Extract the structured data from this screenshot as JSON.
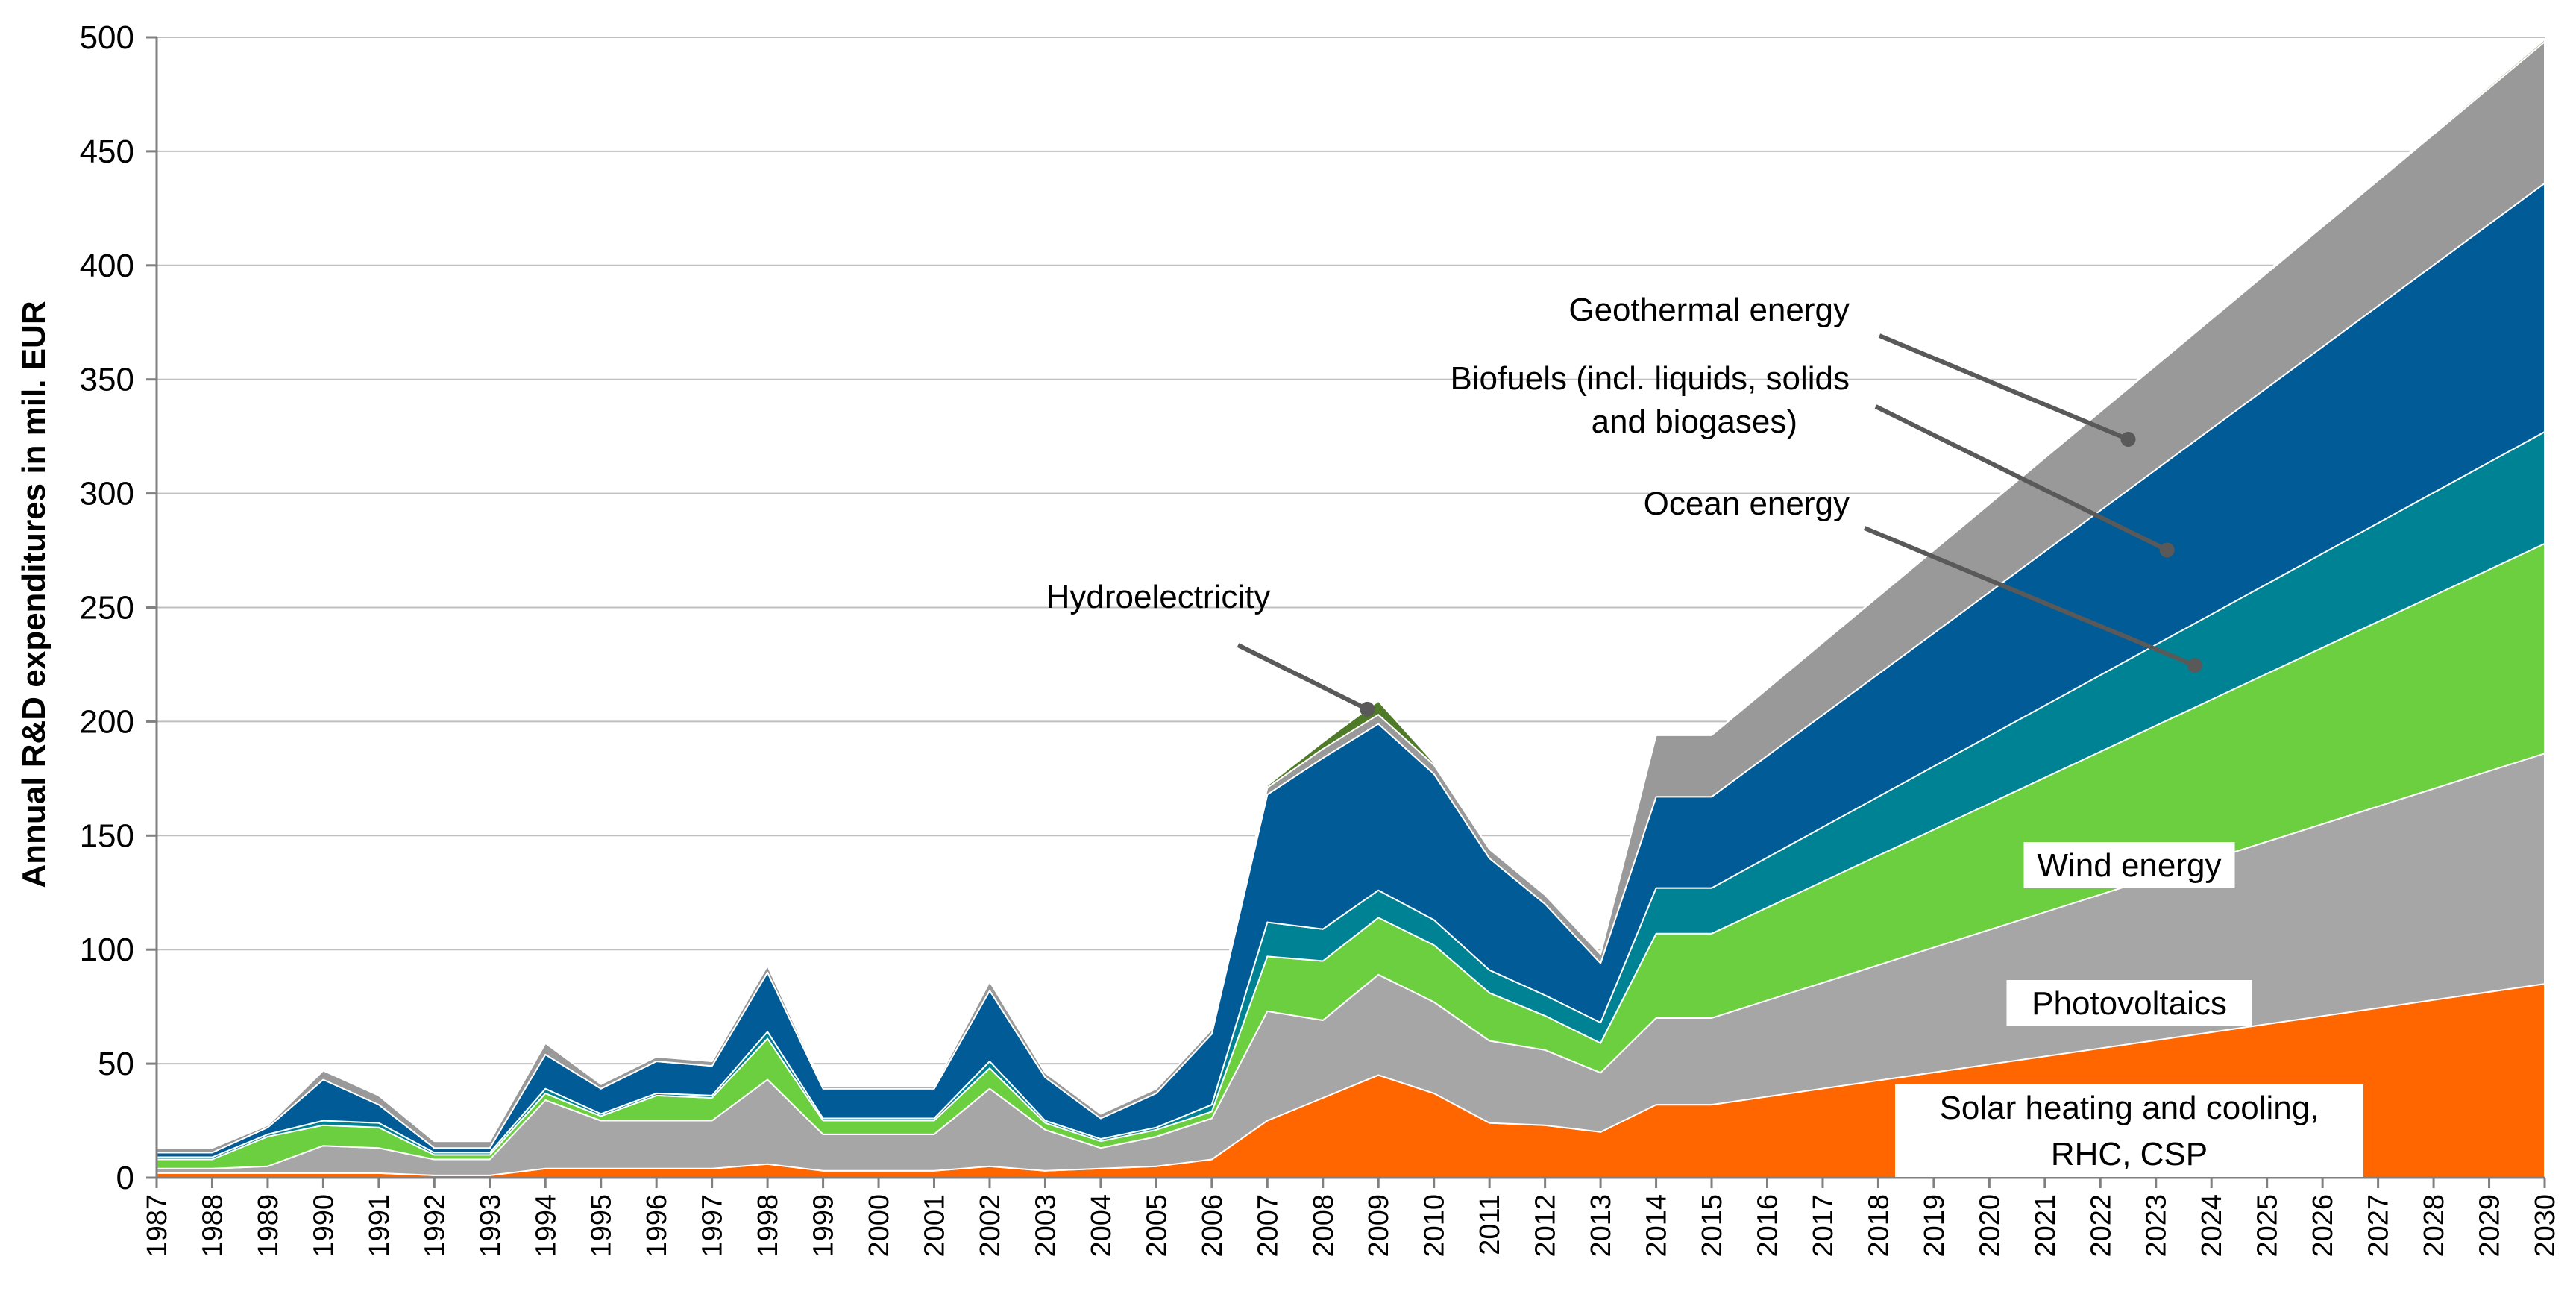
{
  "chart_data": {
    "type": "area",
    "stacked": true,
    "title": "",
    "xlabel": "",
    "ylabel": "Annual R&D expenditures in mil. EUR",
    "ylim": [
      0,
      500
    ],
    "yticks": [
      0,
      50,
      100,
      150,
      200,
      250,
      300,
      350,
      400,
      450,
      500
    ],
    "grid": true,
    "x": [
      1987,
      1988,
      1989,
      1990,
      1991,
      1992,
      1993,
      1994,
      1995,
      1996,
      1997,
      1998,
      1999,
      2000,
      2001,
      2002,
      2003,
      2004,
      2005,
      2006,
      2007,
      2008,
      2009,
      2010,
      2011,
      2012,
      2013,
      2014,
      2015,
      2030
    ],
    "xticks": [
      1987,
      1988,
      1989,
      1990,
      1991,
      1992,
      1993,
      1994,
      1995,
      1996,
      1997,
      1998,
      1999,
      2000,
      2001,
      2002,
      2003,
      2004,
      2005,
      2006,
      2007,
      2008,
      2009,
      2010,
      2011,
      2012,
      2013,
      2014,
      2015,
      2016,
      2017,
      2018,
      2019,
      2020,
      2021,
      2022,
      2023,
      2024,
      2025,
      2026,
      2027,
      2028,
      2029,
      2030
    ],
    "series": [
      {
        "name": "Solar heating and cooling, RHC, CSP",
        "color": "#ff6600",
        "values": [
          2,
          2,
          2,
          2,
          2,
          1,
          1,
          4,
          4,
          4,
          4,
          6,
          3,
          3,
          3,
          5,
          3,
          4,
          5,
          8,
          25,
          35,
          45,
          37,
          24,
          23,
          20,
          32,
          32,
          85
        ]
      },
      {
        "name": "Photovoltaics",
        "color": "#a6a6a6",
        "values": [
          2,
          2,
          3,
          12,
          11,
          7,
          7,
          30,
          21,
          21,
          21,
          37,
          16,
          16,
          16,
          34,
          18,
          9,
          13,
          18,
          48,
          34,
          44,
          40,
          36,
          33,
          26,
          38,
          38,
          101
        ]
      },
      {
        "name": "Wind energy",
        "color": "#6ccf3f",
        "values": [
          4,
          4,
          13,
          9,
          9,
          2,
          2,
          3,
          2,
          11,
          10,
          18,
          6,
          6,
          6,
          9,
          3,
          3,
          3,
          3,
          24,
          26,
          25,
          25,
          21,
          15,
          13,
          37,
          37,
          92
        ]
      },
      {
        "name": "Ocean energy",
        "color": "#008295",
        "values": [
          1,
          1,
          1,
          2,
          2,
          1,
          1,
          2,
          1,
          1,
          1,
          3,
          1,
          1,
          1,
          3,
          1,
          1,
          1,
          3,
          15,
          14,
          12,
          11,
          10,
          9,
          9,
          20,
          20,
          49
        ]
      },
      {
        "name": "Biofuels (incl. liquids, solids and biogases)",
        "color": "#005b96",
        "values": [
          2,
          2,
          3,
          18,
          8,
          2,
          2,
          15,
          11,
          14,
          13,
          26,
          13,
          13,
          13,
          31,
          19,
          9,
          15,
          31,
          56,
          75,
          73,
          64,
          49,
          40,
          26,
          40,
          40,
          109
        ]
      },
      {
        "name": "Geothermal energy",
        "color": "#999999",
        "values": [
          2,
          2,
          1,
          4,
          4,
          3,
          3,
          5,
          2,
          2,
          2,
          3,
          1,
          1,
          1,
          4,
          2,
          2,
          2,
          2,
          3,
          4,
          4,
          4,
          4,
          4,
          4,
          27,
          27,
          62
        ]
      },
      {
        "name": "Hydroelectricity",
        "color": "#4f7a28",
        "values": [
          0,
          0,
          0,
          0,
          0,
          0,
          0,
          0,
          0,
          0,
          0,
          0,
          0,
          0,
          0,
          0,
          0,
          0,
          0,
          0,
          1,
          3,
          6,
          1,
          0,
          0,
          0,
          0,
          0,
          1
        ]
      }
    ],
    "annotations": [
      {
        "text": "Geothermal energy",
        "series": "Geothermal energy",
        "leader": true
      },
      {
        "text": "Biofuels (incl. liquids, solids",
        "text2": "and biogases)",
        "series": "Biofuels (incl. liquids, solids and biogases)",
        "leader": true
      },
      {
        "text": "Ocean energy",
        "series": "Ocean energy",
        "leader": true
      },
      {
        "text": "Hydroelectricity",
        "series": "Hydroelectricity",
        "leader": true
      },
      {
        "text": "Wind energy",
        "series": "Wind energy",
        "leader": false
      },
      {
        "text": "Photovoltaics",
        "series": "Photovoltaics",
        "leader": false
      },
      {
        "text": "Solar heating and cooling,",
        "text2": "RHC, CSP",
        "series": "Solar heating and cooling, RHC, CSP",
        "leader": false
      }
    ]
  }
}
